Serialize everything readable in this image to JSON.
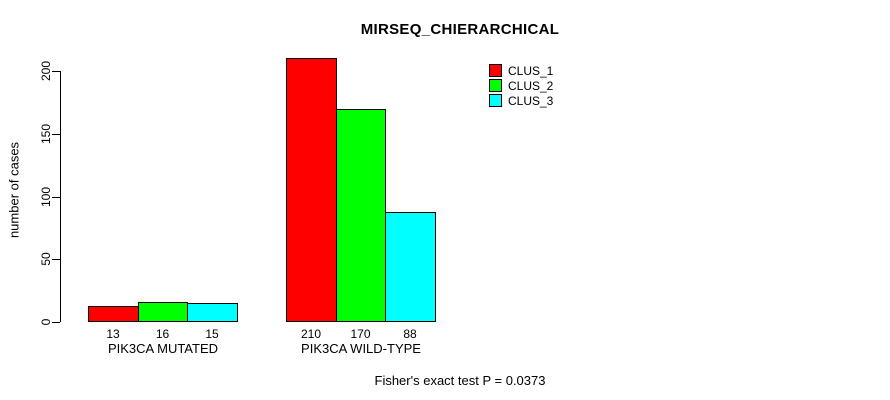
{
  "chart_data": {
    "type": "bar",
    "title": "MIRSEQ_CHIERARCHICAL",
    "ylabel": "number of cases",
    "xlabel": "",
    "footnote": "Fisher's exact test P = 0.0373",
    "yticks": [
      0,
      50,
      100,
      150,
      200
    ],
    "ylim": [
      0,
      210
    ],
    "grid": false,
    "legend_position": "top-right",
    "categories": [
      "PIK3CA MUTATED",
      "PIK3CA WILD-TYPE"
    ],
    "series": [
      {
        "name": "CLUS_1",
        "color": "#FF0000",
        "values": [
          13,
          210
        ]
      },
      {
        "name": "CLUS_2",
        "color": "#00FF00",
        "values": [
          16,
          170
        ]
      },
      {
        "name": "CLUS_3",
        "color": "#00FFFF",
        "values": [
          15,
          88
        ]
      }
    ],
    "bar_value_labels": [
      [
        13,
        16,
        15
      ],
      [
        210,
        170,
        88
      ]
    ]
  }
}
